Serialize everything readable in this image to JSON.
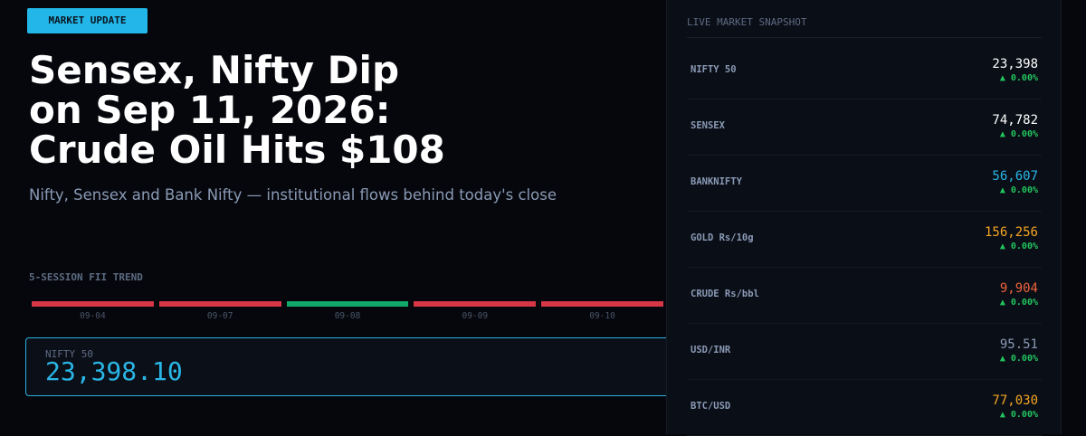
{
  "badge": "MARKET UPDATE",
  "headline": {
    "lines": [
      "Sensex, Nifty Dip",
      "on Sep 11, 2026:",
      "Crude Oil Hits $108"
    ],
    "subtitle": "Nifty, Sensex and Bank Nifty — institutional flows behind today's close"
  },
  "fii_trend": {
    "title": "5-SESSION FII TREND",
    "sessions": [
      {
        "date": "09-04",
        "color": "#d63645"
      },
      {
        "date": "09-07",
        "color": "#d63645"
      },
      {
        "date": "09-08",
        "color": "#12a86a"
      },
      {
        "date": "09-09",
        "color": "#d63645"
      },
      {
        "date": "09-10",
        "color": "#d63645"
      }
    ]
  },
  "ticker_box": {
    "label": "NIFTY 50",
    "value": "23,398.10"
  },
  "snapshot": {
    "title": "LIVE MARKET SNAPSHOT",
    "rows": [
      {
        "label": "NIFTY 50",
        "value": "23,398",
        "change": "▲ 0.00%",
        "color": "#ffffff"
      },
      {
        "label": "SENSEX",
        "value": "74,782",
        "change": "▲ 0.00%",
        "color": "#ffffff"
      },
      {
        "label": "BANKNIFTY",
        "value": "56,607",
        "change": "▲ 0.00%",
        "color": "#29b6e6"
      },
      {
        "label": "GOLD Rs/10g",
        "value": "156,256",
        "change": "▲ 0.00%",
        "color": "#f5a623"
      },
      {
        "label": "CRUDE Rs/bbl",
        "value": "9,904",
        "change": "▲ 0.00%",
        "color": "#f0643c"
      },
      {
        "label": "USD/INR",
        "value": "95.51",
        "change": "▲ 0.00%",
        "color": "#8a9ab5"
      },
      {
        "label": "BTC/USD",
        "value": "77,030",
        "change": "▲ 0.00%",
        "color": "#f5a623"
      }
    ]
  }
}
